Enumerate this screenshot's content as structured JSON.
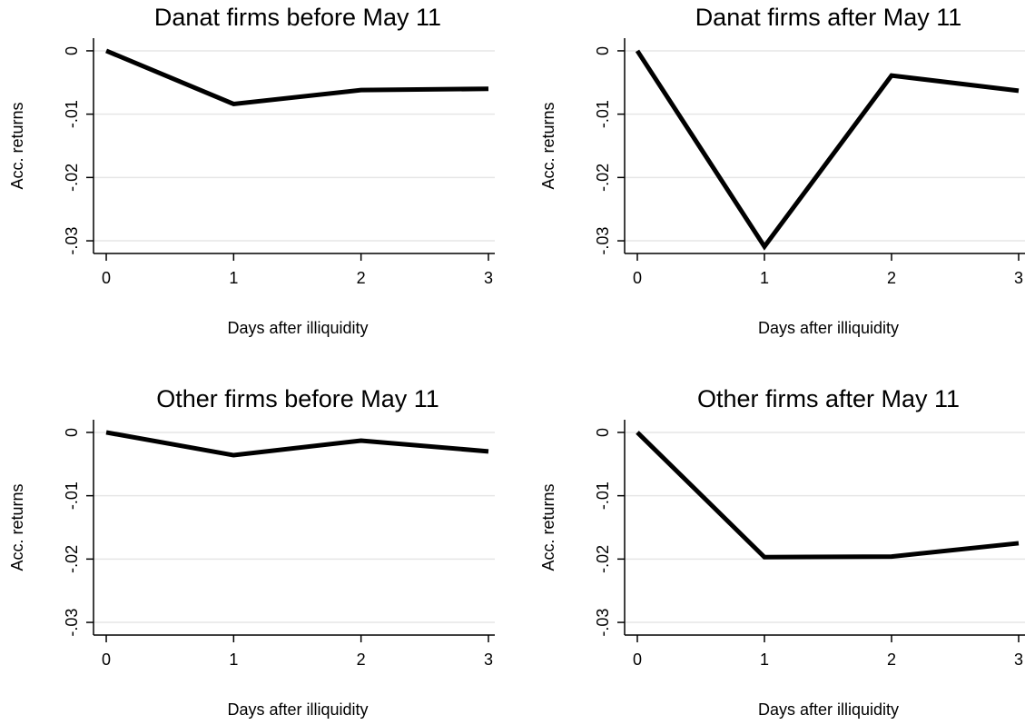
{
  "chart_data": [
    {
      "type": "line",
      "title": "Danat firms before May 11",
      "xlabel": "Days after illiquidity",
      "ylabel": "Acc. returns",
      "x": [
        0,
        1,
        2,
        3
      ],
      "x_ticks": [
        "0",
        "1",
        "2",
        "3"
      ],
      "y_ticks": [
        "0",
        "-.01",
        "-.02",
        "-.03"
      ],
      "y_tick_values": [
        0,
        -0.01,
        -0.02,
        -0.03
      ],
      "ylim": [
        -0.032,
        0.002
      ],
      "xlim": [
        -0.1,
        3.05
      ],
      "grid": true,
      "series": [
        {
          "values": [
            0,
            -0.0084,
            -0.0062,
            -0.006
          ]
        }
      ]
    },
    {
      "type": "line",
      "title": "Danat firms after May 11",
      "xlabel": "Days after illiquidity",
      "ylabel": "Acc. returns",
      "x": [
        0,
        1,
        2,
        3
      ],
      "x_ticks": [
        "0",
        "1",
        "2",
        "3"
      ],
      "y_ticks": [
        "0",
        "-.01",
        "-.02",
        "-.03"
      ],
      "y_tick_values": [
        0,
        -0.01,
        -0.02,
        -0.03
      ],
      "ylim": [
        -0.032,
        0.002
      ],
      "xlim": [
        -0.1,
        3.05
      ],
      "grid": true,
      "series": [
        {
          "values": [
            0,
            -0.0309,
            -0.0039,
            -0.0063
          ]
        }
      ]
    },
    {
      "type": "line",
      "title": "Other firms before May 11",
      "xlabel": "Days after illiquidity",
      "ylabel": "Acc. returns",
      "x": [
        0,
        1,
        2,
        3
      ],
      "x_ticks": [
        "0",
        "1",
        "2",
        "3"
      ],
      "y_ticks": [
        "0",
        "-.01",
        "-.02",
        "-.03"
      ],
      "y_tick_values": [
        0,
        -0.01,
        -0.02,
        -0.03
      ],
      "ylim": [
        -0.032,
        0.002
      ],
      "xlim": [
        -0.1,
        3.05
      ],
      "grid": true,
      "series": [
        {
          "values": [
            0,
            -0.0036,
            -0.0013,
            -0.003
          ]
        }
      ]
    },
    {
      "type": "line",
      "title": "Other firms after May 11",
      "xlabel": "Days after illiquidity",
      "ylabel": "Acc. returns",
      "x": [
        0,
        1,
        2,
        3
      ],
      "x_ticks": [
        "0",
        "1",
        "2",
        "3"
      ],
      "y_ticks": [
        "0",
        "-.01",
        "-.02",
        "-.03"
      ],
      "y_tick_values": [
        0,
        -0.01,
        -0.02,
        -0.03
      ],
      "ylim": [
        -0.032,
        0.002
      ],
      "xlim": [
        -0.1,
        3.05
      ],
      "grid": true,
      "series": [
        {
          "values": [
            0,
            -0.0197,
            -0.0196,
            -0.0175
          ]
        }
      ]
    }
  ],
  "colors": {
    "line": "#000000",
    "grid": "#e6e6e6",
    "background": "#ffffff"
  }
}
